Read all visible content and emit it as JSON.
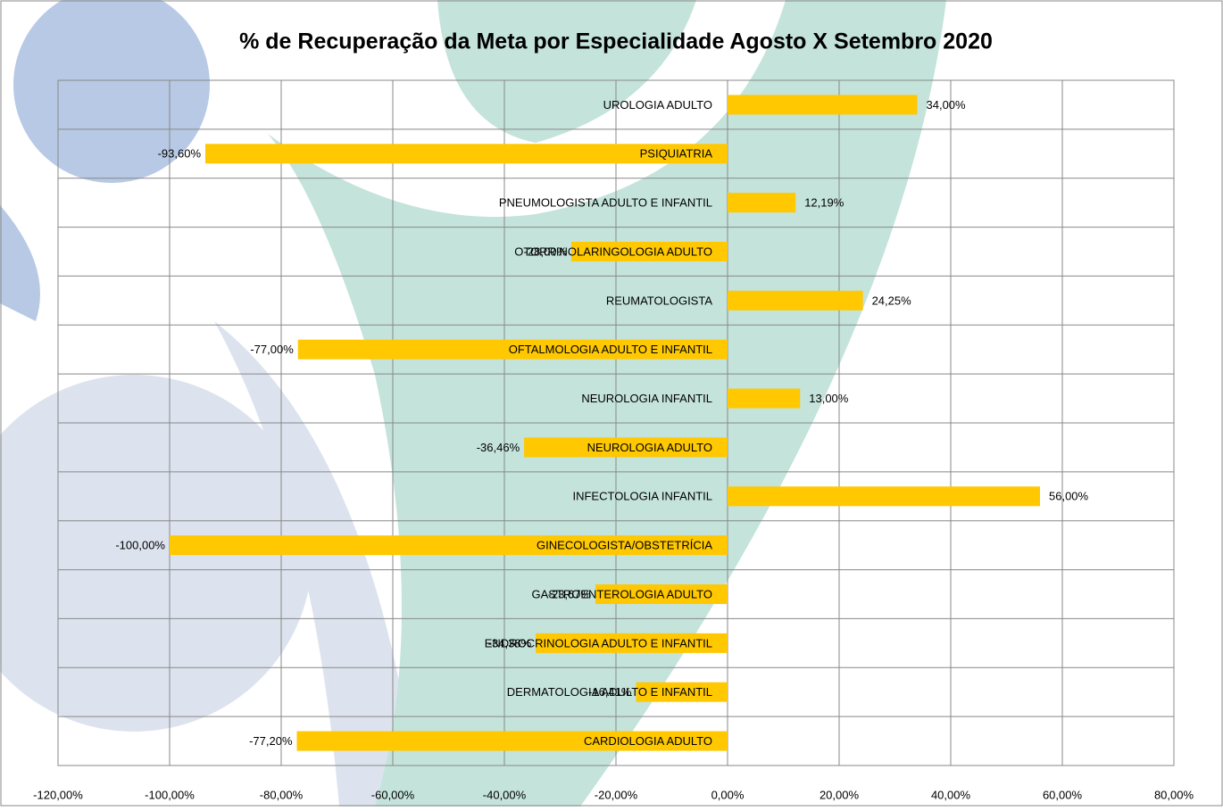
{
  "chart_data": {
    "type": "barh",
    "title": "% de Recuperação da Meta por Especialidade Agosto X Setembro 2020",
    "categories": [
      "UROLOGIA ADULTO",
      "PSIQUIATRIA",
      "PNEUMOLOGISTA ADULTO E INFANTIL",
      "OTORRINOLARINGOLOGIA ADULTO",
      "REUMATOLOGISTA",
      "OFTALMOLOGIA ADULTO E INFANTIL",
      "NEUROLOGIA INFANTIL",
      "NEUROLOGIA ADULTO",
      "INFECTOLOGIA INFANTIL",
      "GINECOLOGISTA/OBSTETRÍCIA",
      "GASTROENTEROLOGIA ADULTO",
      "ENDROCRINOLOGIA ADULTO E INFANTIL",
      "DERMATOLOGIA ADULTO E INFANTIL",
      "CARDIOLOGIA ADULTO"
    ],
    "values": [
      34.0,
      -93.6,
      12.19,
      -28.0,
      24.25,
      -77.0,
      13.0,
      -36.46,
      56.0,
      -100.0,
      -23.67,
      -34.38,
      -16.41,
      -77.2
    ],
    "value_labels": [
      "34,00%",
      "-93,60%",
      "12,19%",
      "-28,00%",
      "24,25%",
      "-77,00%",
      "13,00%",
      "-36,46%",
      "56,00%",
      "-100,00%",
      "-23,67%",
      "-34,38%",
      "-16,41%",
      "-77,20%"
    ],
    "color": "#ffc800",
    "xlim": [
      -120,
      80
    ],
    "xticks": [
      {
        "value": -120,
        "label": "-120,00%"
      },
      {
        "value": -100,
        "label": "-100,00%"
      },
      {
        "value": -80,
        "label": "-80,00%"
      },
      {
        "value": -60,
        "label": "-60,00%"
      },
      {
        "value": -40,
        "label": "-40,00%"
      },
      {
        "value": -20,
        "label": "-20,00%"
      },
      {
        "value": 0,
        "label": "0,00%"
      },
      {
        "value": 20,
        "label": "20,00%"
      },
      {
        "value": 40,
        "label": "40,00%"
      },
      {
        "value": 60,
        "label": "60,00%"
      },
      {
        "value": 80,
        "label": "80,00%"
      }
    ],
    "grid": true
  }
}
